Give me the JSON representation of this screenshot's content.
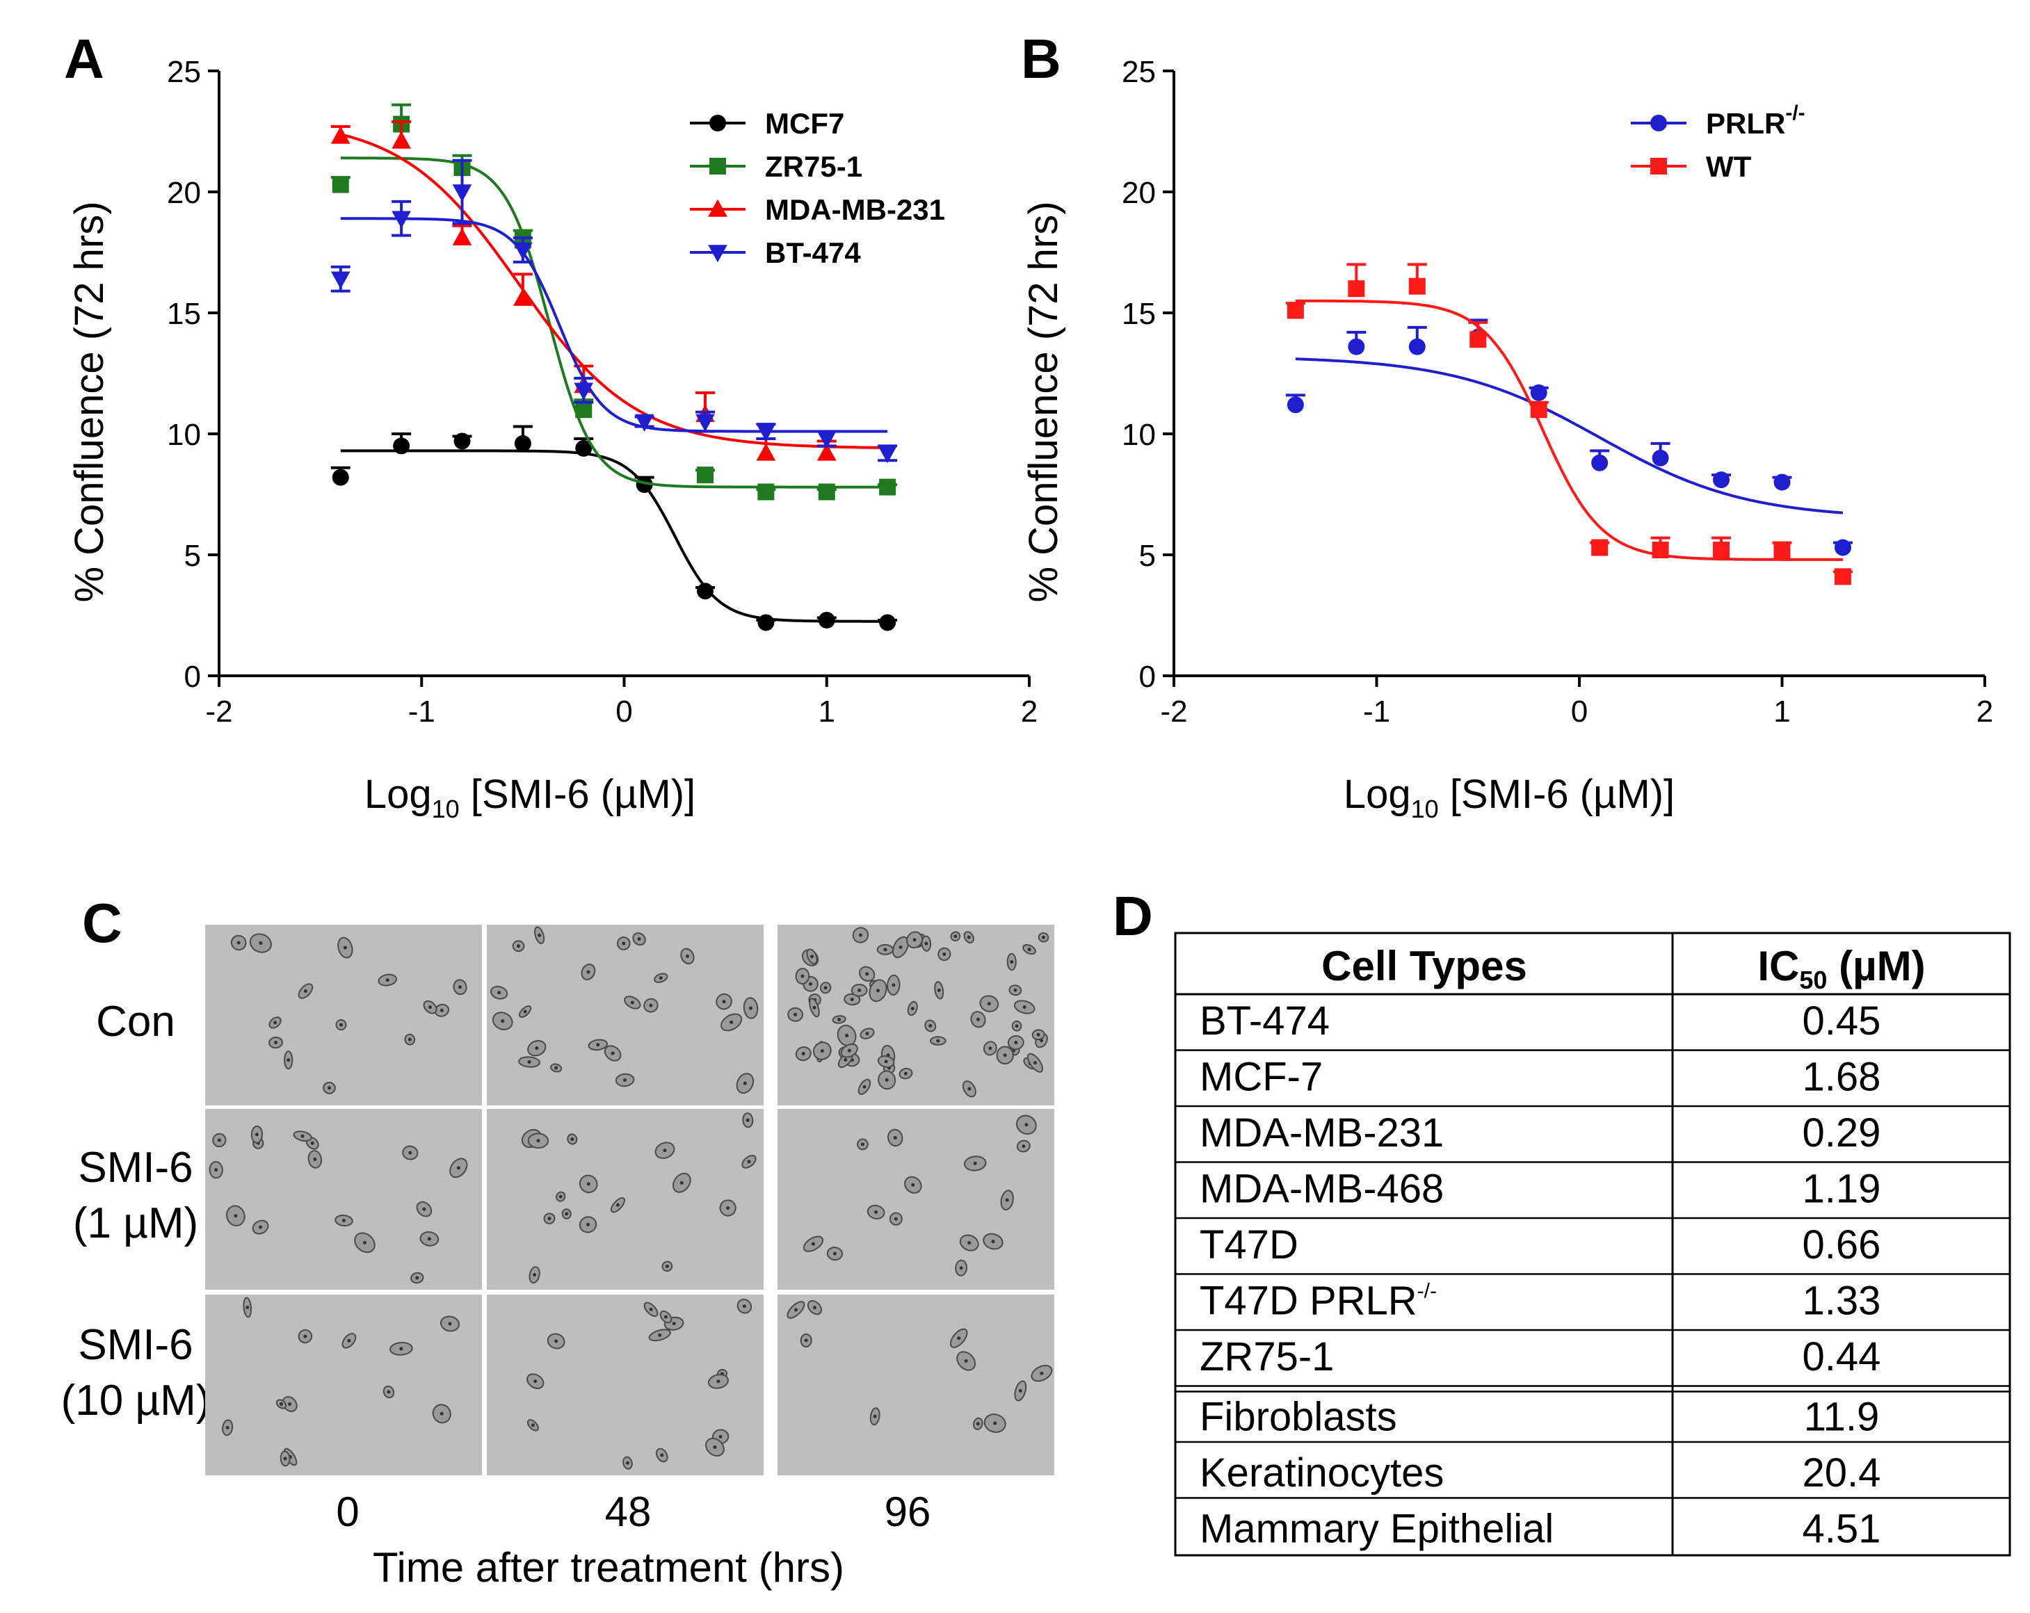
{
  "panels": {
    "A": "A",
    "B": "B",
    "C": "C",
    "D": "D"
  },
  "chart_data": [
    {
      "id": "A",
      "type": "line",
      "title": "",
      "xlabel": {
        "main": "Log",
        "sub": "10",
        "rest": " [SMI-6 (µM)]"
      },
      "ylabel": "% Confluence (72 hrs)",
      "xlim": [
        -2,
        2
      ],
      "ylim": [
        0,
        25
      ],
      "xticks": [
        -2,
        -1,
        0,
        1,
        2
      ],
      "yticks": [
        0,
        5,
        10,
        15,
        20,
        25
      ],
      "legend_position": "top-right",
      "series": [
        {
          "name": "MCF7",
          "color": "#000000",
          "marker": "circle",
          "x": [
            -1.4,
            -1.1,
            -0.8,
            -0.5,
            -0.2,
            0.1,
            0.4,
            0.7,
            1.0,
            1.3
          ],
          "y": [
            8.2,
            9.5,
            9.7,
            9.6,
            9.4,
            7.9,
            3.5,
            2.2,
            2.3,
            2.2
          ],
          "err": [
            0.4,
            0.5,
            0.2,
            0.7,
            0.4,
            0.3,
            0.15,
            0.1,
            0.1,
            0.1
          ],
          "fit": {
            "top": 9.3,
            "bottom": 2.25,
            "logec50": 0.25,
            "hill": 4.0
          }
        },
        {
          "name": "ZR75-1",
          "color": "#1f7a1f",
          "marker": "square",
          "x": [
            -1.4,
            -1.1,
            -0.8,
            -0.5,
            -0.2,
            0.4,
            0.7,
            1.0,
            1.3
          ],
          "y": [
            20.3,
            22.8,
            21.0,
            18.0,
            11.0,
            8.3,
            7.6,
            7.6,
            7.8
          ],
          "err": [
            0.3,
            0.8,
            0.5,
            0.4,
            0.4,
            0.2,
            0.1,
            0.1,
            0.1
          ],
          "fit": {
            "top": 21.4,
            "bottom": 7.8,
            "logec50": -0.37,
            "hill": 4.0
          }
        },
        {
          "name": "MDA-MB-231",
          "color": "#ff0000",
          "marker": "triangle-up",
          "x": [
            -1.4,
            -1.1,
            -0.8,
            -0.5,
            -0.2,
            0.4,
            0.7,
            1.0
          ],
          "y": [
            22.3,
            22.1,
            18.1,
            15.6,
            12.0,
            10.8,
            9.2,
            9.2
          ],
          "err": [
            0.4,
            0.8,
            0.5,
            1.0,
            0.8,
            0.9,
            0.6,
            0.5
          ],
          "fit": {
            "top": 23.0,
            "bottom": 9.4,
            "logec50": -0.52,
            "hill": 1.5
          }
        },
        {
          "name": "BT-474",
          "color": "#1f1fd0",
          "marker": "triangle-down",
          "x": [
            -1.4,
            -1.1,
            -0.8,
            -0.5,
            -0.2,
            0.1,
            0.4,
            0.7,
            1.0,
            1.3
          ],
          "y": [
            16.4,
            18.9,
            20.0,
            17.6,
            11.8,
            10.5,
            10.5,
            10.1,
            9.8,
            9.2
          ],
          "err": [
            0.5,
            0.7,
            1.3,
            0.5,
            0.5,
            0.2,
            0.4,
            0.3,
            0.3,
            0.3
          ],
          "fit": {
            "top": 18.9,
            "bottom": 10.1,
            "logec50": -0.32,
            "hill": 4.0
          }
        }
      ]
    },
    {
      "id": "B",
      "type": "line",
      "title": "",
      "xlabel": {
        "main": "Log",
        "sub": "10",
        "rest": " [SMI-6 (µM)]"
      },
      "ylabel": "% Confluence (72 hrs)",
      "xlim": [
        -2,
        2
      ],
      "ylim": [
        0,
        25
      ],
      "xticks": [
        -2,
        -1,
        0,
        1,
        2
      ],
      "yticks": [
        0,
        5,
        10,
        15,
        20,
        25
      ],
      "legend_position": "top-right",
      "series": [
        {
          "name": "PRLR",
          "name_sup": "-/-",
          "color": "#1f1fd0",
          "marker": "circle",
          "x": [
            -1.4,
            -1.1,
            -0.8,
            -0.5,
            -0.2,
            0.1,
            0.4,
            0.7,
            1.0,
            1.3
          ],
          "y": [
            11.2,
            13.6,
            13.6,
            14.0,
            11.7,
            8.8,
            9.0,
            8.1,
            8.0,
            5.3
          ],
          "err": [
            0.4,
            0.6,
            0.8,
            0.7,
            0.2,
            0.5,
            0.6,
            0.2,
            0.2,
            0.2
          ],
          "fit": {
            "top": 13.2,
            "bottom": 6.5,
            "logec50": 0.1,
            "hill": 1.2
          }
        },
        {
          "name": "WT",
          "name_sup": "",
          "color": "#ff1a1a",
          "marker": "square",
          "x": [
            -1.4,
            -1.1,
            -0.8,
            -0.5,
            -0.2,
            0.1,
            0.4,
            0.7,
            1.0,
            1.3
          ],
          "y": [
            15.1,
            16.0,
            16.1,
            13.9,
            11.0,
            5.3,
            5.2,
            5.2,
            5.2,
            4.1
          ],
          "err": [
            0.3,
            1.0,
            0.9,
            0.7,
            0.3,
            0.2,
            0.5,
            0.5,
            0.3,
            0.2
          ],
          "fit": {
            "top": 15.5,
            "bottom": 4.8,
            "logec50": -0.18,
            "hill": 3.0
          }
        }
      ]
    },
    {
      "id": "D",
      "type": "table",
      "headers": [
        {
          "main": "Cell Types"
        },
        {
          "main": "IC",
          "sub": "50",
          "rest": " (µM)"
        }
      ],
      "rows": [
        {
          "cell": "BT-474",
          "sup": "",
          "value": "0.45"
        },
        {
          "cell": "MCF-7",
          "sup": "",
          "value": "1.68"
        },
        {
          "cell": "MDA-MB-231",
          "sup": "",
          "value": "0.29"
        },
        {
          "cell": "MDA-MB-468",
          "sup": "",
          "value": "1.19"
        },
        {
          "cell": "T47D",
          "sup": "",
          "value": "0.66"
        },
        {
          "cell": "T47D PRLR",
          "sup": "-/-",
          "value": "1.33"
        },
        {
          "cell": "ZR75-1",
          "sup": "",
          "value": "0.44"
        },
        {
          "cell": "Fibroblasts",
          "sup": "",
          "value": "11.9"
        },
        {
          "cell": "Keratinocytes",
          "sup": "",
          "value": "20.4"
        },
        {
          "cell": "Mammary Epithelial",
          "sup": "",
          "value": "4.51"
        }
      ]
    }
  ],
  "micrographs": {
    "rows": [
      {
        "label_lines": [
          "Con"
        ],
        "density": [
          14,
          22,
          60
        ]
      },
      {
        "label_lines": [
          "SMI-6",
          "(1 µM)"
        ],
        "density": [
          16,
          16,
          14
        ]
      },
      {
        "label_lines": [
          "SMI-6",
          "(10 µM)"
        ],
        "density": [
          12,
          14,
          10
        ]
      }
    ],
    "time_labels": [
      "0",
      "48",
      "96"
    ],
    "time_axis_title": "Time after treatment (hrs)"
  }
}
